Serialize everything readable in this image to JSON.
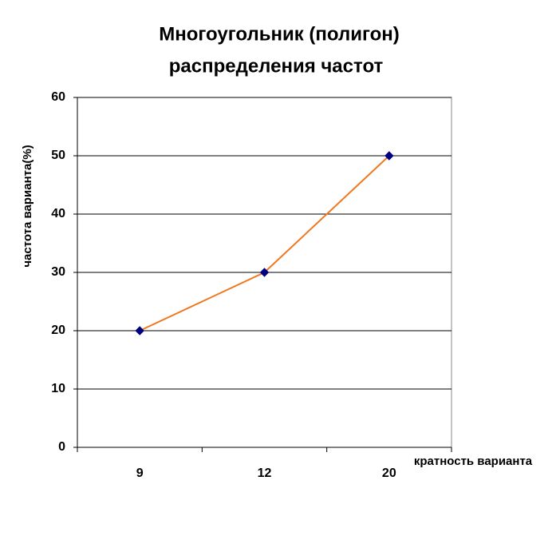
{
  "chart_data": {
    "type": "line",
    "title": [
      "Многоугольник (полигон)",
      "распределения частот"
    ],
    "x_label": "кратность варианта",
    "y_label": "частота варианта(%)",
    "categories": [
      "9",
      "12",
      "20"
    ],
    "series": [
      {
        "values": [
          20,
          30,
          50
        ],
        "color": "#f07820",
        "marker_color": "#000080"
      }
    ],
    "ylim": [
      0,
      60
    ],
    "yticks": [
      0,
      10,
      20,
      30,
      40,
      50,
      60
    ],
    "grid": true
  }
}
